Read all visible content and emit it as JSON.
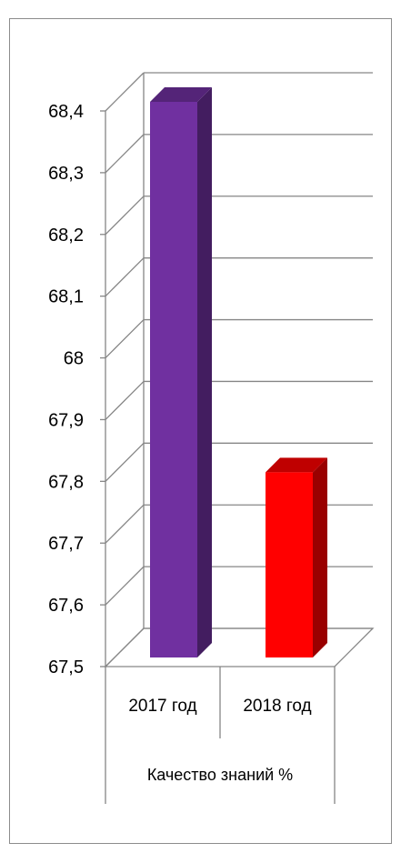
{
  "chart_data": {
    "type": "bar",
    "title": "",
    "xlabel": "",
    "ylabel": "",
    "ylim": [
      67.5,
      68.4
    ],
    "yticks": [
      67.5,
      67.6,
      67.7,
      67.8,
      67.9,
      68,
      68.1,
      68.2,
      68.3,
      68.4
    ],
    "ytick_labels": [
      "67,5",
      "67,6",
      "67,7",
      "67,8",
      "67,9",
      "68",
      "68,1",
      "68,2",
      "68,3",
      "68,4"
    ],
    "categories": [
      "2017 год",
      "2018 год"
    ],
    "group_label": "Качество знаний %",
    "values": [
      68.4,
      67.8
    ],
    "colors": [
      "#7030a0",
      "#ff0000"
    ],
    "grid": true,
    "style": "3d-column"
  }
}
